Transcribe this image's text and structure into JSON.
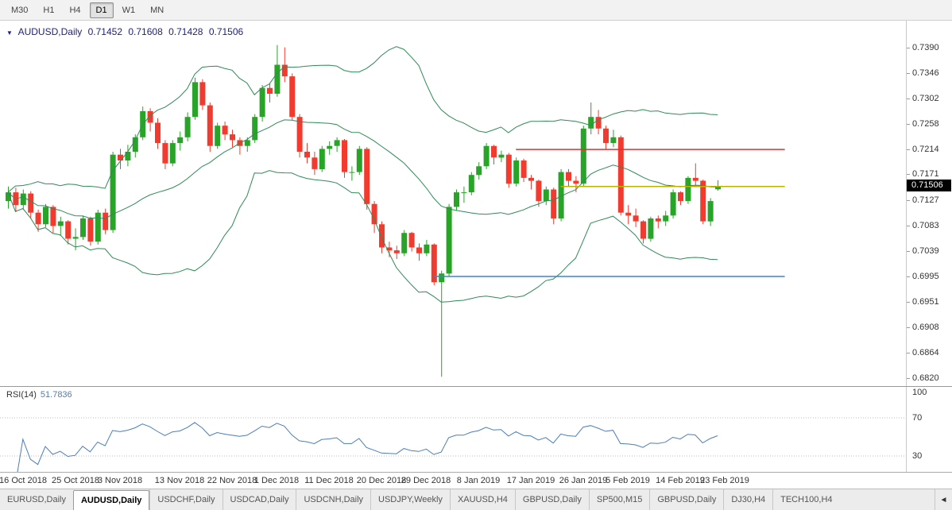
{
  "toolbar": {
    "timeframes": [
      {
        "label": "M30",
        "active": false
      },
      {
        "label": "H1",
        "active": false
      },
      {
        "label": "H4",
        "active": false
      },
      {
        "label": "D1",
        "active": true
      },
      {
        "label": "W1",
        "active": false
      },
      {
        "label": "MN",
        "active": false
      }
    ]
  },
  "chart": {
    "expand_icon": "▼",
    "symbol_label": "AUDUSD,Daily",
    "ohlc": {
      "open": "0.71452",
      "high": "0.71608",
      "low": "0.71428",
      "close": "0.71506"
    },
    "last_price": "0.71506"
  },
  "rsi_panel": {
    "label": "RSI(14)",
    "value": "51.7836",
    "scale_labels": [
      "100",
      "70",
      "30"
    ]
  },
  "tabs": {
    "items": [
      {
        "label": "EURUSD,Daily",
        "active": false
      },
      {
        "label": "AUDUSD,Daily",
        "active": true
      },
      {
        "label": "USDCHF,Daily",
        "active": false
      },
      {
        "label": "USDCAD,Daily",
        "active": false
      },
      {
        "label": "USDCNH,Daily",
        "active": false
      },
      {
        "label": "USDJPY,Weekly",
        "active": false
      },
      {
        "label": "XAUUSD,H4",
        "active": false
      },
      {
        "label": "GBPUSD,Daily",
        "active": false
      },
      {
        "label": "SP500,M15",
        "active": false
      },
      {
        "label": "GBPUSD,Daily",
        "active": false
      },
      {
        "label": "DJ30,H4",
        "active": false
      },
      {
        "label": "TECH100,H4",
        "active": false
      }
    ],
    "scroll_icon": "◄"
  },
  "chart_data": {
    "type": "candlestick",
    "symbol": "AUDUSD",
    "timeframe": "Daily",
    "colors": {
      "up": "#28a428",
      "down": "#f23b2e",
      "bollinger": "#2e8b57",
      "rsi": "#4a7ebb"
    },
    "price_axis": {
      "view_top": 0.7436,
      "view_bottom": 0.6806,
      "ticks": [
        0.739,
        0.7346,
        0.7302,
        0.7258,
        0.7214,
        0.7171,
        0.7127,
        0.7083,
        0.7039,
        0.6995,
        0.6951,
        0.6908,
        0.6864,
        0.682
      ]
    },
    "x_labels": [
      {
        "index": 2,
        "label": "16 Oct 2018"
      },
      {
        "index": 9,
        "label": "25 Oct 2018"
      },
      {
        "index": 15,
        "label": "3 Nov 2018"
      },
      {
        "index": 23,
        "label": "13 Nov 2018"
      },
      {
        "index": 30,
        "label": "22 Nov 2018"
      },
      {
        "index": 36,
        "label": "1 Dec 2018"
      },
      {
        "index": 43,
        "label": "11 Dec 2018"
      },
      {
        "index": 50,
        "label": "20 Dec 2018"
      },
      {
        "index": 56,
        "label": "29 Dec 2018"
      },
      {
        "index": 63,
        "label": "8 Jan 2019"
      },
      {
        "index": 70,
        "label": "17 Jan 2019"
      },
      {
        "index": 77,
        "label": "26 Jan 2019"
      },
      {
        "index": 83,
        "label": "5 Feb 2019"
      },
      {
        "index": 90,
        "label": "14 Feb 2019"
      },
      {
        "index": 96,
        "label": "23 Feb 2019"
      }
    ],
    "candles": [
      [
        0.7125,
        0.715,
        0.7112,
        0.714
      ],
      [
        0.714,
        0.7148,
        0.7106,
        0.7118
      ],
      [
        0.7118,
        0.7145,
        0.711,
        0.7138
      ],
      [
        0.7138,
        0.7142,
        0.7095,
        0.7105
      ],
      [
        0.7105,
        0.711,
        0.7072,
        0.7085
      ],
      [
        0.7085,
        0.712,
        0.708,
        0.7115
      ],
      [
        0.7115,
        0.7118,
        0.707,
        0.7082
      ],
      [
        0.7082,
        0.7098,
        0.7065,
        0.709
      ],
      [
        0.709,
        0.7092,
        0.705,
        0.706
      ],
      [
        0.706,
        0.7078,
        0.704,
        0.7063
      ],
      [
        0.7063,
        0.71,
        0.7058,
        0.7095
      ],
      [
        0.7095,
        0.7098,
        0.7048,
        0.7055
      ],
      [
        0.7055,
        0.711,
        0.705,
        0.7105
      ],
      [
        0.7105,
        0.7112,
        0.7068,
        0.7075
      ],
      [
        0.7075,
        0.721,
        0.707,
        0.7205
      ],
      [
        0.7205,
        0.7215,
        0.718,
        0.7195
      ],
      [
        0.7195,
        0.7222,
        0.7185,
        0.721
      ],
      [
        0.721,
        0.724,
        0.72,
        0.7235
      ],
      [
        0.7235,
        0.7288,
        0.723,
        0.728
      ],
      [
        0.728,
        0.7285,
        0.7245,
        0.726
      ],
      [
        0.726,
        0.7268,
        0.7215,
        0.7225
      ],
      [
        0.7225,
        0.723,
        0.718,
        0.719
      ],
      [
        0.719,
        0.723,
        0.7185,
        0.7225
      ],
      [
        0.7225,
        0.7245,
        0.7212,
        0.7235
      ],
      [
        0.7235,
        0.7278,
        0.7228,
        0.727
      ],
      [
        0.727,
        0.7338,
        0.7265,
        0.733
      ],
      [
        0.733,
        0.7335,
        0.7282,
        0.729
      ],
      [
        0.729,
        0.7295,
        0.721,
        0.722
      ],
      [
        0.722,
        0.726,
        0.7215,
        0.7255
      ],
      [
        0.7255,
        0.7262,
        0.723,
        0.724
      ],
      [
        0.724,
        0.7248,
        0.7218,
        0.723
      ],
      [
        0.723,
        0.7235,
        0.7205,
        0.722
      ],
      [
        0.722,
        0.7235,
        0.721,
        0.723
      ],
      [
        0.723,
        0.7275,
        0.7225,
        0.727
      ],
      [
        0.727,
        0.7325,
        0.7262,
        0.732
      ],
      [
        0.732,
        0.7328,
        0.7295,
        0.731
      ],
      [
        0.731,
        0.7394,
        0.7305,
        0.736
      ],
      [
        0.736,
        0.739,
        0.733,
        0.734
      ],
      [
        0.734,
        0.7345,
        0.7265,
        0.727
      ],
      [
        0.727,
        0.7275,
        0.72,
        0.721
      ],
      [
        0.721,
        0.7225,
        0.719,
        0.72
      ],
      [
        0.72,
        0.721,
        0.717,
        0.718
      ],
      [
        0.718,
        0.722,
        0.7175,
        0.7215
      ],
      [
        0.7215,
        0.7228,
        0.7205,
        0.722
      ],
      [
        0.722,
        0.7235,
        0.721,
        0.723
      ],
      [
        0.723,
        0.7232,
        0.7165,
        0.7175
      ],
      [
        0.7175,
        0.7185,
        0.716,
        0.7175
      ],
      [
        0.7175,
        0.722,
        0.717,
        0.7215
      ],
      [
        0.7215,
        0.7218,
        0.711,
        0.712
      ],
      [
        0.712,
        0.7125,
        0.707,
        0.7085
      ],
      [
        0.7085,
        0.709,
        0.7035,
        0.7045
      ],
      [
        0.7045,
        0.7055,
        0.7028,
        0.704
      ],
      [
        0.704,
        0.7048,
        0.7025,
        0.7035
      ],
      [
        0.7035,
        0.7075,
        0.703,
        0.707
      ],
      [
        0.707,
        0.7072,
        0.7038,
        0.7045
      ],
      [
        0.7045,
        0.7052,
        0.7022,
        0.7035
      ],
      [
        0.7035,
        0.7058,
        0.703,
        0.705
      ],
      [
        0.705,
        0.7052,
        0.698,
        0.6985
      ],
      [
        0.6985,
        0.7005,
        0.6822,
        0.7
      ],
      [
        0.7,
        0.712,
        0.6995,
        0.7115
      ],
      [
        0.7115,
        0.7145,
        0.7108,
        0.714
      ],
      [
        0.714,
        0.715,
        0.7122,
        0.714
      ],
      [
        0.714,
        0.7175,
        0.7135,
        0.717
      ],
      [
        0.717,
        0.7192,
        0.7162,
        0.7185
      ],
      [
        0.7185,
        0.7225,
        0.718,
        0.722
      ],
      [
        0.722,
        0.7222,
        0.7188,
        0.72
      ],
      [
        0.72,
        0.7212,
        0.7192,
        0.7205
      ],
      [
        0.7205,
        0.7208,
        0.7148,
        0.7155
      ],
      [
        0.7155,
        0.72,
        0.715,
        0.7195
      ],
      [
        0.7195,
        0.7198,
        0.7158,
        0.7165
      ],
      [
        0.7165,
        0.717,
        0.7145,
        0.716
      ],
      [
        0.716,
        0.7162,
        0.7115,
        0.7125
      ],
      [
        0.7125,
        0.715,
        0.7118,
        0.7145
      ],
      [
        0.7145,
        0.7148,
        0.7085,
        0.7095
      ],
      [
        0.7095,
        0.718,
        0.709,
        0.7175
      ],
      [
        0.7175,
        0.718,
        0.715,
        0.716
      ],
      [
        0.716,
        0.7168,
        0.714,
        0.7155
      ],
      [
        0.7155,
        0.7255,
        0.715,
        0.725
      ],
      [
        0.725,
        0.7295,
        0.724,
        0.727
      ],
      [
        0.727,
        0.7282,
        0.724,
        0.725
      ],
      [
        0.725,
        0.7255,
        0.7215,
        0.7225
      ],
      [
        0.7225,
        0.7248,
        0.7218,
        0.7235
      ],
      [
        0.7235,
        0.7238,
        0.71,
        0.7105
      ],
      [
        0.7105,
        0.7118,
        0.7085,
        0.71
      ],
      [
        0.71,
        0.7112,
        0.708,
        0.709
      ],
      [
        0.709,
        0.7092,
        0.7052,
        0.706
      ],
      [
        0.706,
        0.7098,
        0.7055,
        0.7095
      ],
      [
        0.7095,
        0.71,
        0.7078,
        0.709
      ],
      [
        0.709,
        0.7108,
        0.7082,
        0.71
      ],
      [
        0.71,
        0.7145,
        0.7095,
        0.714
      ],
      [
        0.714,
        0.7142,
        0.7118,
        0.7125
      ],
      [
        0.7125,
        0.7168,
        0.712,
        0.7165
      ],
      [
        0.7165,
        0.719,
        0.7152,
        0.716
      ],
      [
        0.716,
        0.7162,
        0.7085,
        0.709
      ],
      [
        0.709,
        0.713,
        0.7082,
        0.7125
      ],
      [
        0.71452,
        0.71608,
        0.71428,
        0.71506
      ]
    ],
    "overlays": {
      "bollinger": {
        "period": 20,
        "deviation": 2
      },
      "hlines": [
        {
          "price": 0.7214,
          "from_index": 68,
          "to_index": 104,
          "color": "#e53030"
        },
        {
          "price": 0.715,
          "from_index": 74,
          "to_index": 104,
          "color": "#b8b400"
        },
        {
          "price": 0.6995,
          "from_index": 57,
          "to_index": 104,
          "color": "#3d85c8"
        }
      ]
    },
    "rsi": {
      "period": 14,
      "levels": [
        70,
        30
      ],
      "last_value": 51.7836
    }
  }
}
